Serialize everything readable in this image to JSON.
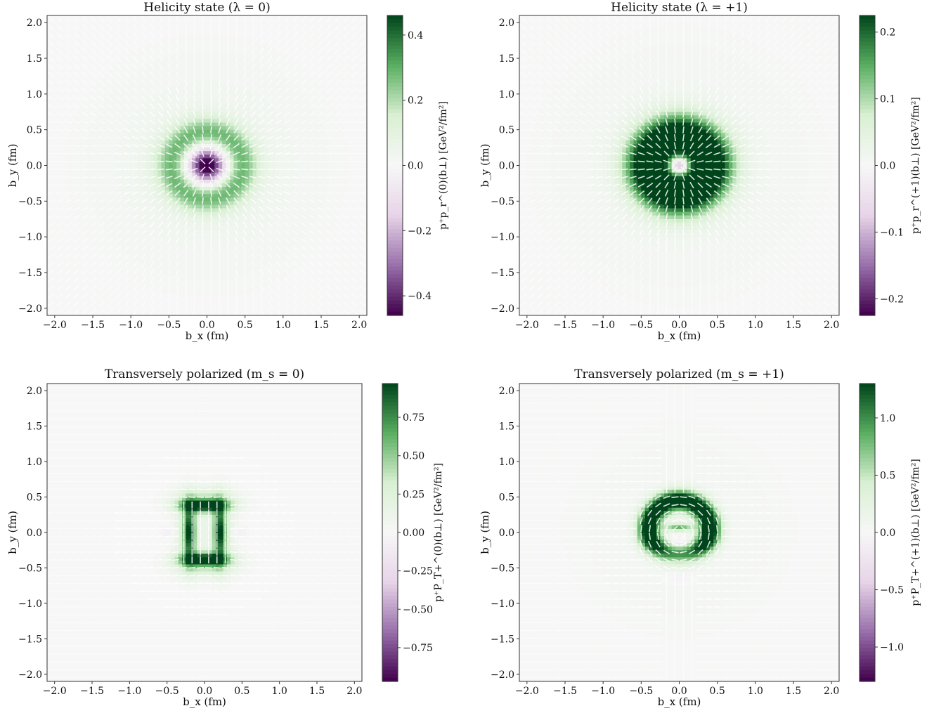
{
  "colors": {
    "low": "#40004b",
    "mid_low": "#9970ab",
    "light_low": "#e7d4e8",
    "zero": "#f7f7f7",
    "light_high": "#d9f0d3",
    "mid_high": "#5aae61",
    "high": "#00441b",
    "arrow": "#ffffff",
    "colormap_name": "PRGn"
  },
  "chart_data": [
    {
      "type": "heatmap",
      "title": "Helicity state (λ = 0)",
      "xlabel": "b_x (fm)",
      "ylabel": "b_y (fm)",
      "xlim": [
        -2.1,
        2.1
      ],
      "ylim": [
        -2.1,
        2.1
      ],
      "xticks": [
        "−2.0",
        "−1.5",
        "−1.0",
        "−0.5",
        "0.0",
        "0.5",
        "1.0",
        "1.5",
        "2.0"
      ],
      "xtick_values": [
        -2.0,
        -1.5,
        -1.0,
        -0.5,
        0.0,
        0.5,
        1.0,
        1.5,
        2.0
      ],
      "yticks": [
        "−2.0",
        "−1.5",
        "−1.0",
        "−0.5",
        "0.0",
        "0.5",
        "1.0",
        "1.5",
        "2.0"
      ],
      "ytick_values": [
        -2.0,
        -1.5,
        -1.0,
        -0.5,
        0.0,
        0.5,
        1.0,
        1.5,
        2.0
      ],
      "colorbar": {
        "label": "p⁺p_r^(0)(b⊥) [GeV²/fm²]",
        "range": [
          -0.46,
          0.46
        ],
        "ticks": [
          "−0.4",
          "−0.2",
          "0.0",
          "0.2",
          "0.4"
        ],
        "tick_values": [
          -0.4,
          -0.2,
          0.0,
          0.2,
          0.4
        ]
      },
      "pattern": "heli0",
      "vector_field": "radial"
    },
    {
      "type": "heatmap",
      "title": "Helicity state (λ = +1)",
      "xlabel": "b_x (fm)",
      "ylabel": "b_y (fm)",
      "xlim": [
        -2.1,
        2.1
      ],
      "ylim": [
        -2.1,
        2.1
      ],
      "xticks": [
        "−2.0",
        "−1.5",
        "−1.0",
        "−0.5",
        "0.0",
        "0.5",
        "1.0",
        "1.5",
        "2.0"
      ],
      "xtick_values": [
        -2.0,
        -1.5,
        -1.0,
        -0.5,
        0.0,
        0.5,
        1.0,
        1.5,
        2.0
      ],
      "yticks": [
        "−2.0",
        "−1.5",
        "−1.0",
        "−0.5",
        "0.0",
        "0.5",
        "1.0",
        "1.5",
        "2.0"
      ],
      "ytick_values": [
        -2.0,
        -1.5,
        -1.0,
        -0.5,
        0.0,
        0.5,
        1.0,
        1.5,
        2.0
      ],
      "colorbar": {
        "label": "p⁺p_r^(+1)(b⊥) [GeV²/fm²]",
        "range": [
          -0.225,
          0.225
        ],
        "ticks": [
          "−0.2",
          "−0.1",
          "0.0",
          "0.1",
          "0.2"
        ],
        "tick_values": [
          -0.2,
          -0.1,
          0.0,
          0.1,
          0.2
        ]
      },
      "pattern": "heli1",
      "vector_field": "radial"
    },
    {
      "type": "heatmap",
      "title": "Transversely polarized (m_s = 0)",
      "xlabel": "b_x (fm)",
      "ylabel": "b_y (fm)",
      "xlim": [
        -2.1,
        2.1
      ],
      "ylim": [
        -2.1,
        2.1
      ],
      "xticks": [
        "−2.0",
        "−1.5",
        "−1.0",
        "−0.5",
        "0.0",
        "0.5",
        "1.0",
        "1.5",
        "2.0"
      ],
      "xtick_values": [
        -2.0,
        -1.5,
        -1.0,
        -0.5,
        0.0,
        0.5,
        1.0,
        1.5,
        2.0
      ],
      "yticks": [
        "−2.0",
        "−1.5",
        "−1.0",
        "−0.5",
        "0.0",
        "0.5",
        "1.0",
        "1.5",
        "2.0"
      ],
      "ytick_values": [
        -2.0,
        -1.5,
        -1.0,
        -0.5,
        0.0,
        0.5,
        1.0,
        1.5,
        2.0
      ],
      "colorbar": {
        "label": "p⁺P_T+^(0)(b⊥) [GeV²/fm²]",
        "range": [
          -0.97,
          0.97
        ],
        "ticks": [
          "−0.75",
          "−0.50",
          "−0.25",
          "0.00",
          "0.25",
          "0.50",
          "0.75"
        ],
        "tick_values": [
          -0.75,
          -0.5,
          -0.25,
          0.0,
          0.25,
          0.5,
          0.75
        ]
      },
      "pattern": "trans0",
      "vector_field": "horizontal"
    },
    {
      "type": "heatmap",
      "title": "Transversely polarized (m_s = +1)",
      "xlabel": "b_x (fm)",
      "ylabel": "b_y (fm)",
      "xlim": [
        -2.1,
        2.1
      ],
      "ylim": [
        -2.1,
        2.1
      ],
      "xticks": [
        "−2.0",
        "−1.5",
        "−1.0",
        "−0.5",
        "0.0",
        "0.5",
        "1.0",
        "1.5",
        "2.0"
      ],
      "xtick_values": [
        -2.0,
        -1.5,
        -1.0,
        -0.5,
        0.0,
        0.5,
        1.0,
        1.5,
        2.0
      ],
      "yticks": [
        "−2.0",
        "−1.5",
        "−1.0",
        "−0.5",
        "0.0",
        "0.5",
        "1.0",
        "1.5",
        "2.0"
      ],
      "ytick_values": [
        -2.0,
        -1.5,
        -1.0,
        -0.5,
        0.0,
        0.5,
        1.0,
        1.5,
        2.0
      ],
      "colorbar": {
        "label": "p⁺P_T+^(+1)(b⊥) [GeV²/fm²]",
        "range": [
          -1.3,
          1.3
        ],
        "ticks": [
          "−1.0",
          "−0.5",
          "0.0",
          "0.5",
          "1.0"
        ],
        "tick_values": [
          -1.0,
          -0.5,
          0.0,
          0.5,
          1.0
        ]
      },
      "pattern": "trans1",
      "vector_field": "mixed"
    }
  ]
}
